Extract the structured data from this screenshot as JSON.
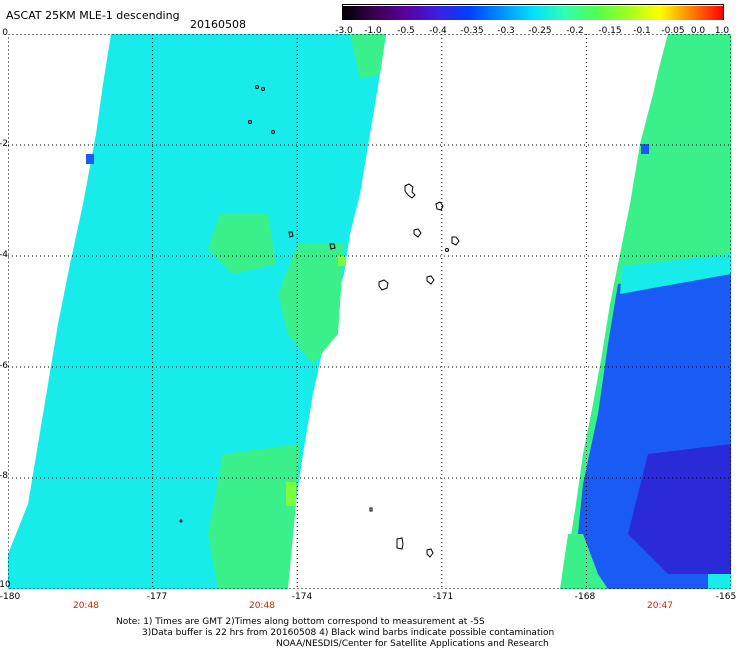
{
  "title": "ASCAT 25KM MLE-1 descending",
  "date": "20160508",
  "colorbar": {
    "ticks": [
      "-3.0",
      "-1.0",
      "-0.5",
      "-0.4",
      "-0.35",
      "-0.3",
      "-0.25",
      "-0.2",
      "-0.15",
      "-0.1",
      "-0.05",
      "0.0",
      "1.0"
    ],
    "colors": [
      "#000000",
      "#3a0050",
      "#5a00a0",
      "#3a20e0",
      "#0040ff",
      "#0090ff",
      "#00e0ff",
      "#30ffb0",
      "#50ff50",
      "#a0ff20",
      "#ffff00",
      "#ff8000",
      "#ff0000"
    ]
  },
  "axes": {
    "y_ticks": [
      "0",
      "-2",
      "-4",
      "-6",
      "-8",
      "-10"
    ],
    "x_ticks": [
      "-180",
      "-177",
      "-174",
      "-171",
      "-168",
      "-165"
    ],
    "time_labels": [
      "20:48",
      "20:48",
      "20:47"
    ]
  },
  "swath_colors": {
    "left_swath": "#18ecea",
    "green": "#3af08a",
    "bright_green": "#7cff3c",
    "right_blue": "#1a5af5",
    "right_dark": "#2a2ad8"
  },
  "notes": {
    "line1": "Note: 1) Times are GMT 2)Times along bottom correspond to measurement at -5S",
    "line2": "3)Data buffer is 22 hrs from 20160508 4) Black wind barbs indicate possible contamination",
    "line3": "NOAA/NESDIS/Center for Satellite Applications and Research"
  }
}
